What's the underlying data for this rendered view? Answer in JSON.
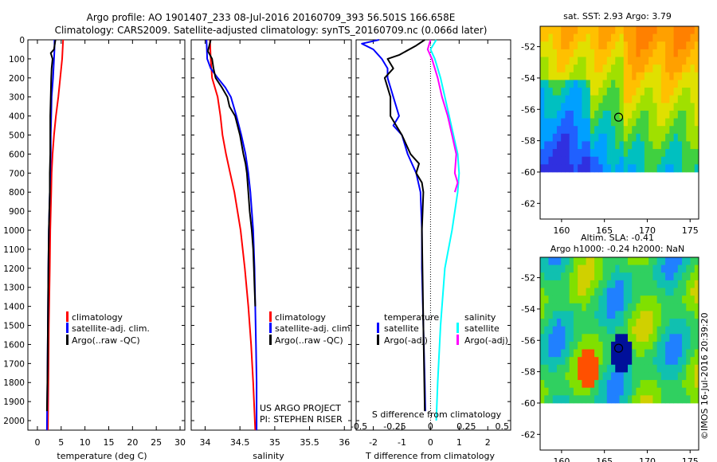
{
  "header": {
    "line1": "Argo profile: AO 1901407_233 08-Jul-2016 20160709_393 56.501S 166.658E",
    "line2": "Climatology: CARS2009. Satellite-adjusted climatology: synTS_20160709.nc (0.066d later)"
  },
  "colors": {
    "climatology": "#ff0000",
    "satellite": "#0000ff",
    "argo": "#000000",
    "sal_satellite": "#00ffff",
    "sal_argo": "#ff00ff"
  },
  "chart_data": [
    {
      "id": "temperature",
      "type": "line",
      "xlabel": "temperature (deg C)",
      "xlim": [
        -2,
        31
      ],
      "xticks": [
        0,
        5,
        10,
        15,
        20,
        25,
        30
      ],
      "ylim": [
        0,
        2050
      ],
      "yticks": [
        0,
        100,
        200,
        300,
        400,
        500,
        600,
        700,
        800,
        900,
        1000,
        1100,
        1200,
        1300,
        1400,
        1500,
        1600,
        1700,
        1800,
        1900,
        2000
      ],
      "legend": [
        "climatology",
        "satellite-adj. clim.",
        "Argo(..raw -QC)"
      ],
      "series": [
        {
          "name": "climatology",
          "color": "#ff0000",
          "depth": [
            0,
            100,
            200,
            300,
            400,
            500,
            600,
            700,
            800,
            1000,
            1200,
            1500,
            1800,
            2050
          ],
          "values": [
            5.4,
            5.2,
            4.8,
            4.4,
            3.9,
            3.5,
            3.2,
            3.0,
            2.9,
            2.7,
            2.6,
            2.4,
            2.3,
            2.2
          ]
        },
        {
          "name": "satellite-adj. clim.",
          "color": "#0000ff",
          "depth": [
            0,
            50,
            100,
            200,
            300,
            400,
            500,
            600,
            700,
            800,
            1000,
            1200,
            1500,
            1800,
            2050
          ],
          "values": [
            3.6,
            3.6,
            3.5,
            3.3,
            3.0,
            2.9,
            2.8,
            2.8,
            2.7,
            2.6,
            2.4,
            2.3,
            2.2,
            2.1,
            2.0
          ]
        },
        {
          "name": "Argo(..raw -QC)",
          "color": "#000000",
          "depth": [
            0,
            50,
            70,
            100,
            150,
            200,
            300,
            400,
            500,
            600,
            700,
            800,
            1000,
            1200,
            1500,
            1800,
            1950
          ],
          "values": [
            3.8,
            3.5,
            2.8,
            3.2,
            3.0,
            2.9,
            2.8,
            2.7,
            2.7,
            2.7,
            2.6,
            2.6,
            2.4,
            2.3,
            2.2,
            2.1,
            2.0
          ]
        }
      ]
    },
    {
      "id": "salinity",
      "type": "line",
      "xlabel": "salinity",
      "xlim": [
        33.8,
        36.1
      ],
      "xticks": [
        34,
        34.5,
        35,
        35.5,
        36
      ],
      "xticklabels": [
        "34",
        "34.5",
        "35",
        "35.5",
        "36"
      ],
      "ylim": [
        0,
        2050
      ],
      "legend": [
        "climatology",
        "satellite-adj. clim.",
        "Argo(..raw -QC)"
      ],
      "annotation": [
        "US ARGO PROJECT",
        "PI: STEPHEN RISER"
      ],
      "series": [
        {
          "name": "climatology",
          "color": "#ff0000",
          "depth": [
            0,
            100,
            200,
            300,
            400,
            500,
            600,
            700,
            800,
            1000,
            1200,
            1400,
            1600,
            1800,
            2050
          ],
          "values": [
            34.07,
            34.08,
            34.1,
            34.18,
            34.22,
            34.25,
            34.3,
            34.36,
            34.42,
            34.51,
            34.57,
            34.62,
            34.66,
            34.69,
            34.72
          ]
        },
        {
          "name": "satellite-adj. clim.",
          "color": "#0000ff",
          "depth": [
            0,
            100,
            150,
            200,
            250,
            300,
            400,
            500,
            600,
            700,
            800,
            1000,
            1200,
            1400,
            1600,
            1800,
            2050
          ],
          "values": [
            34.02,
            34.03,
            34.08,
            34.18,
            34.29,
            34.37,
            34.45,
            34.52,
            34.58,
            34.62,
            34.65,
            34.69,
            34.71,
            34.72,
            34.73,
            34.74,
            34.74
          ]
        },
        {
          "name": "Argo(..raw -QC)",
          "color": "#000000",
          "depth": [
            0,
            60,
            100,
            150,
            200,
            250,
            300,
            350,
            400,
            500,
            600,
            650,
            700,
            800,
            900,
            1000,
            1100,
            1200,
            1300,
            1400
          ],
          "values": [
            34.08,
            34.04,
            34.1,
            34.12,
            34.15,
            34.24,
            34.32,
            34.35,
            34.43,
            34.5,
            34.55,
            34.58,
            34.6,
            34.62,
            34.64,
            34.67,
            34.69,
            34.7,
            34.71,
            34.72
          ]
        }
      ]
    },
    {
      "id": "difference",
      "type": "line",
      "xlabel": "T difference from climatology",
      "xlim": [
        -2.6,
        2.8
      ],
      "xticks": [
        -2,
        -1,
        0,
        1,
        2
      ],
      "top_axis_label": "S difference from climatology",
      "top_xticks": [
        -0.5,
        -0.25,
        0,
        0.25,
        0.5
      ],
      "top_xticklabels": [
        "-0.5",
        "-0.25",
        "0",
        "0.25",
        "0.5"
      ],
      "ylim": [
        0,
        2050
      ],
      "legend_temperature_title": "temperature",
      "legend_salinity_title": "salinity",
      "legend": [
        "satellite",
        "Argo(-adj)",
        "satellite",
        "Argo(-adj)"
      ],
      "series": [
        {
          "name": "satellite",
          "color": "#0000ff",
          "depth": [
            0,
            20,
            50,
            100,
            150,
            200,
            300,
            400,
            450,
            500,
            600,
            700,
            800,
            1000,
            1200,
            1500,
            1800,
            1950
          ],
          "values": [
            -1.8,
            -2.4,
            -2.0,
            -1.7,
            -1.5,
            -1.5,
            -1.3,
            -1.1,
            -1.3,
            -1.0,
            -0.8,
            -0.5,
            -0.35,
            -0.3,
            -0.3,
            -0.25,
            -0.2,
            -0.18
          ]
        },
        {
          "name": "Argo(-adj)",
          "color": "#000000",
          "depth": [
            0,
            30,
            80,
            100,
            150,
            200,
            300,
            400,
            450,
            500,
            600,
            650,
            700,
            750,
            800,
            1000,
            1500,
            1950
          ],
          "values": [
            -0.2,
            -0.5,
            -1.1,
            -1.5,
            -1.3,
            -1.6,
            -1.4,
            -1.4,
            -1.2,
            -1.0,
            -0.7,
            -0.4,
            -0.5,
            -0.3,
            -0.25,
            -0.3,
            -0.25,
            -0.2
          ]
        },
        {
          "name": "sal_satellite",
          "color": "#00ffff",
          "depth": [
            0,
            50,
            100,
            200,
            300,
            400,
            500,
            600,
            700,
            800,
            1000,
            1200,
            1500,
            1800,
            2000
          ],
          "values": [
            0.04,
            0.0,
            0.03,
            0.07,
            0.1,
            0.13,
            0.16,
            0.19,
            0.2,
            0.19,
            0.15,
            0.1,
            0.07,
            0.05,
            0.04
          ]
        },
        {
          "name": "sal_argo",
          "color": "#ff00ff",
          "depth": [
            0,
            50,
            100,
            200,
            300,
            400,
            500,
            600,
            700,
            750,
            800
          ],
          "values": [
            0.0,
            -0.02,
            0.01,
            0.05,
            0.08,
            0.12,
            0.15,
            0.18,
            0.17,
            0.19,
            0.17
          ]
        }
      ]
    },
    {
      "id": "sst_map",
      "type": "heatmap",
      "title": "sat. SST: 2.93 Argo: 3.79",
      "xticks": [
        160,
        165,
        170,
        175
      ],
      "yticks": [
        -52,
        -54,
        -56,
        -58,
        -60,
        -62
      ],
      "xlim": [
        157.5,
        176
      ],
      "ylim": [
        -63,
        -50.7
      ],
      "marker": {
        "lon": 166.658,
        "lat": -56.501
      }
    },
    {
      "id": "sla_map",
      "type": "heatmap",
      "title": "Altim. SLA: -0.41",
      "subtitle": "Argo h1000: -0.24 h2000: NaN",
      "xticks": [
        160,
        165,
        170,
        175
      ],
      "yticks": [
        -52,
        -54,
        -56,
        -58,
        -60,
        -62
      ],
      "xlim": [
        157.5,
        176
      ],
      "ylim": [
        -63,
        -50.7
      ],
      "marker": {
        "lon": 166.658,
        "lat": -56.501
      }
    }
  ],
  "footer": {
    "credit": "©IMOS 16-Jul-2016 20:39:20"
  }
}
